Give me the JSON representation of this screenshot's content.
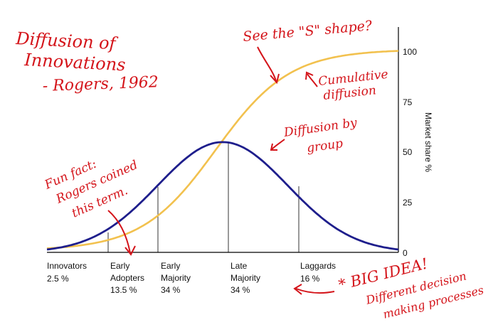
{
  "chart_data": {
    "type": "line",
    "x": [
      0,
      100
    ],
    "y2label": "Market share %",
    "ylim": [
      0,
      100
    ],
    "yticks": [
      0,
      25,
      50,
      75,
      100
    ],
    "series": [
      {
        "name": "Cumulative diffusion",
        "color": "#f2c14e",
        "shape": "logistic",
        "start": 0,
        "end": 100
      },
      {
        "name": "Diffusion by group",
        "color": "#1e1e8c",
        "shape": "bell",
        "peak_x": 50,
        "peak_y": 55
      }
    ],
    "segments": [
      {
        "name": "Innovators",
        "share": "2.5 %",
        "boundary_x": 0
      },
      {
        "name_line1": "Early",
        "name_line2": "Adopters",
        "share": "13.5 %",
        "boundary_x": 16
      },
      {
        "name_line1": "Early",
        "name_line2": "Majority",
        "share": "34 %",
        "boundary_x": 32
      },
      {
        "name_line1": "Late",
        "name_line2": "Majority",
        "share": "34 %",
        "boundary_x": 50
      },
      {
        "name": "Laggards",
        "share": "16 %",
        "boundary_x": 68
      }
    ]
  },
  "annotations": {
    "title_line1": "Diffusion of",
    "title_line2": "Innovations",
    "title_line3": "- Rogers, 1962",
    "s_shape": "See the \"S\" shape?",
    "cumulative_line1": "Cumulative",
    "cumulative_line2": "diffusion",
    "group_line1": "Diffusion by",
    "group_line2": "group",
    "funfact_line1": "Fun fact:",
    "funfact_line2": "Rogers coined",
    "funfact_line3": "this term.",
    "bigidea_line1": "* BIG IDEA!",
    "bigidea_line2": "Different decision",
    "bigidea_line3": "making processes"
  },
  "colors": {
    "ink": "#d4141a",
    "axis": "#000000"
  }
}
